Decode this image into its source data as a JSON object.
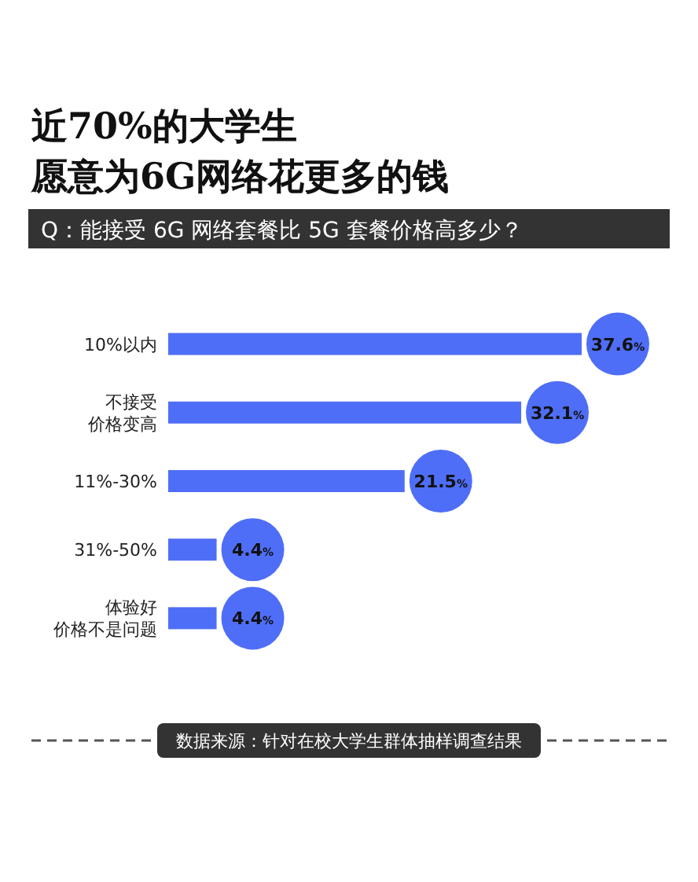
{
  "chart_data": {
    "type": "bar",
    "orientation": "horizontal",
    "title": "近70%的大学生愿意为6G网络花更多的钱",
    "subtitle": "Q：能接受 6G 网络套餐比 5G 套餐价格高多少？",
    "categories": [
      "10%以内",
      "不接受价格变高",
      "11%-30%",
      "31%-50%",
      "体验好价格不是问题"
    ],
    "values": [
      37.6,
      32.1,
      21.5,
      4.4,
      4.4
    ],
    "value_labels": [
      "37.6%",
      "32.1%",
      "21.5%",
      "4.4%",
      "4.4%"
    ],
    "color": "#4f6ef7",
    "annotations": [
      "数据来源：针对在校大学生群体抽样调查结果"
    ]
  }
}
